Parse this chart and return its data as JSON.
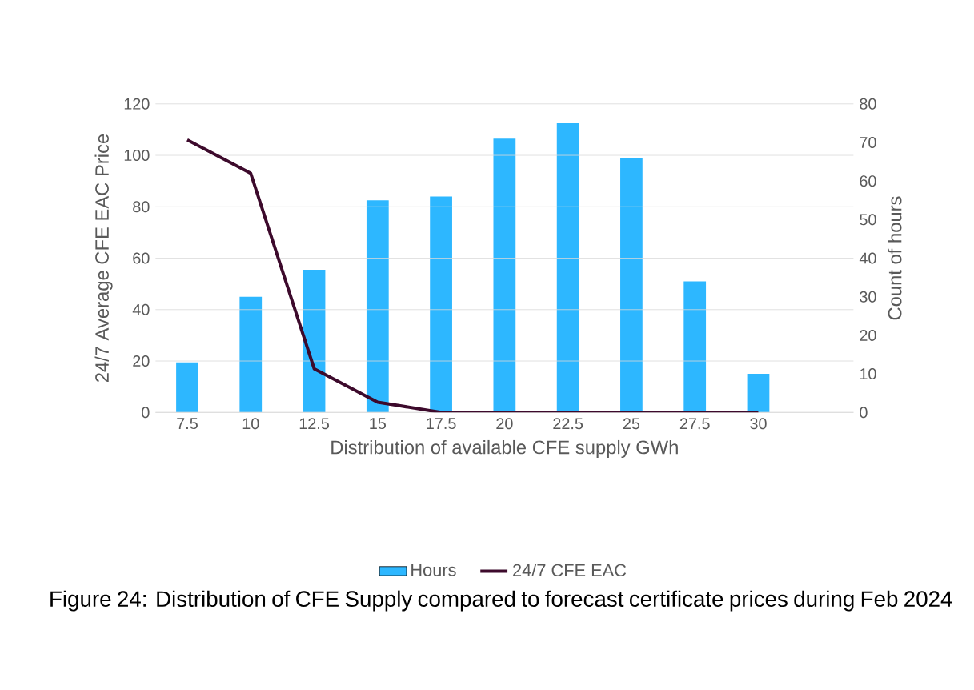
{
  "chart_data": {
    "type": "bar",
    "xlabel": "Distribution of available CFE supply GWh",
    "ylabel": "24/7 Average CFE EAC Price",
    "y2label": "Count of hours",
    "categories": [
      "7.5",
      "10",
      "12.5",
      "15",
      "17.5",
      "20",
      "22.5",
      "25",
      "27.5",
      "30",
      null
    ],
    "series": [
      {
        "name": "Hours",
        "axis": "y2",
        "color": "#2db7ff",
        "values": [
          13,
          30,
          37,
          55,
          56,
          71,
          75,
          66,
          34,
          10,
          null
        ]
      },
      {
        "name": "24/7 CFE EAC",
        "type": "line",
        "color": "#3d0a2c",
        "values": [
          106,
          93,
          17,
          4,
          0,
          0,
          0,
          0,
          0,
          0,
          null
        ]
      }
    ],
    "ylim": [
      0,
      120
    ],
    "yticks": [
      0,
      20,
      40,
      60,
      80,
      100,
      120
    ],
    "y2lim": [
      0,
      80
    ],
    "y2ticks": [
      0,
      10,
      20,
      30,
      40,
      50,
      60,
      70,
      80
    ],
    "grid": "y",
    "legend": "bottom",
    "marker": "none",
    "line_style": "solid",
    "annotations": [
      "Figure 24: Distribution of CFE Supply compared to forecast certificate prices during Feb 2024"
    ]
  }
}
